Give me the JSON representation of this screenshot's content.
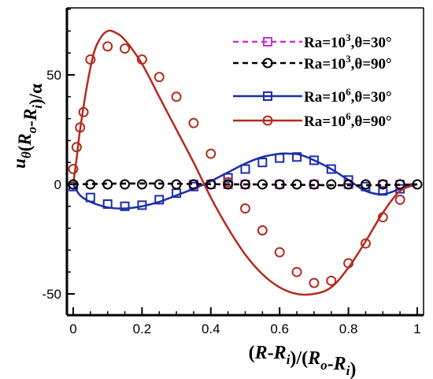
{
  "chart_data": {
    "type": "line",
    "xlabel": "(R-R_i)/(R_o-R_i)",
    "ylabel": "u_θ(R_o-R_i)/α",
    "xlim": [
      0,
      1
    ],
    "ylim": [
      -60,
      80
    ],
    "x_ticks": [
      "0",
      "0.2",
      "0.4",
      "0.6",
      "0.8",
      "1"
    ],
    "y_ticks": [
      "-50",
      "0",
      "50"
    ],
    "legend_position": "top-right",
    "series": [
      {
        "name": "Ra=10^3,θ=30°",
        "color": "#cc33cc",
        "line_style": "dashed",
        "marker": "square",
        "line": {
          "x": [
            0,
            0.1,
            0.2,
            0.3,
            0.4,
            0.5,
            0.6,
            0.7,
            0.8,
            0.9,
            1.0
          ],
          "y": [
            0,
            0.3,
            0.4,
            0.3,
            0.1,
            0,
            -0.1,
            -0.3,
            -0.4,
            -0.3,
            0
          ]
        },
        "markers": {
          "x": [
            0.35,
            0.4,
            0.45,
            0.5,
            0.6,
            0.7,
            0.8,
            0.9,
            0.95
          ],
          "y": [
            0,
            0,
            0,
            0,
            0,
            0,
            0,
            0,
            0
          ]
        }
      },
      {
        "name": "Ra=10^3,θ=90°",
        "color": "#000000",
        "line_style": "dashed",
        "marker": "circle",
        "line": {
          "x": [
            0,
            0.1,
            0.2,
            0.3,
            0.4,
            0.5,
            0.6,
            0.7,
            0.8,
            0.9,
            1.0
          ],
          "y": [
            0,
            0.3,
            0.4,
            0.3,
            0.1,
            0,
            -0.1,
            -0.3,
            -0.4,
            -0.3,
            0
          ]
        },
        "markers": {
          "x": [
            0,
            0.05,
            0.1,
            0.15,
            0.2,
            0.25,
            0.3,
            0.35,
            0.4,
            0.45,
            0.5,
            0.55,
            0.6,
            0.65,
            0.7,
            0.75,
            0.8,
            0.85,
            0.9,
            0.95,
            1.0
          ],
          "y": [
            0,
            0,
            0,
            0,
            0,
            0,
            0,
            0,
            0,
            0,
            0,
            0,
            0,
            0,
            0,
            0,
            0,
            0,
            0,
            0,
            0
          ]
        }
      },
      {
        "name": "Ra=10^6,θ=30°",
        "color": "#1a2ea8",
        "line_style": "solid",
        "marker": "square",
        "line": {
          "x": [
            0,
            0.02,
            0.05,
            0.1,
            0.15,
            0.2,
            0.25,
            0.3,
            0.35,
            0.4,
            0.45,
            0.5,
            0.55,
            0.6,
            0.63,
            0.66,
            0.7,
            0.75,
            0.8,
            0.85,
            0.9,
            0.95,
            0.98,
            1.0
          ],
          "y": [
            0,
            -5,
            -8,
            -10.5,
            -11,
            -10,
            -8,
            -5,
            -2,
            1.5,
            5.5,
            9.5,
            12.5,
            14,
            14,
            13.5,
            11,
            7,
            2,
            -3,
            -4.5,
            -2,
            0,
            0
          ]
        },
        "markers": {
          "x": [
            0,
            0.05,
            0.1,
            0.15,
            0.2,
            0.25,
            0.3,
            0.35,
            0.4,
            0.45,
            0.5,
            0.55,
            0.6,
            0.65,
            0.7,
            0.75,
            0.8,
            0.85,
            0.9,
            0.95
          ],
          "y": [
            -1,
            -6,
            -9,
            -10,
            -9.5,
            -7,
            -4,
            -1,
            0,
            3,
            7,
            10,
            12,
            12.5,
            11,
            7,
            2,
            -1,
            -3,
            -2
          ]
        }
      },
      {
        "name": "Ra=10^6,θ=90°",
        "color": "#b52a1f",
        "line_style": "solid",
        "marker": "circle",
        "line": {
          "x": [
            0,
            0.01,
            0.02,
            0.04,
            0.06,
            0.08,
            0.1,
            0.12,
            0.15,
            0.2,
            0.25,
            0.3,
            0.35,
            0.4,
            0.45,
            0.5,
            0.55,
            0.6,
            0.65,
            0.7,
            0.75,
            0.8,
            0.85,
            0.9,
            0.95,
            1.0
          ],
          "y": [
            0,
            12,
            25,
            45,
            60,
            67,
            70,
            69.5,
            66,
            55,
            40,
            25,
            10,
            -6,
            -20,
            -32,
            -41,
            -47,
            -50,
            -50,
            -47,
            -38,
            -26,
            -13,
            -3,
            0
          ]
        },
        "markers": {
          "x": [
            0,
            0.01,
            0.02,
            0.03,
            0.05,
            0.1,
            0.15,
            0.2,
            0.25,
            0.3,
            0.35,
            0.4,
            0.45,
            0.5,
            0.55,
            0.6,
            0.65,
            0.7,
            0.75,
            0.8,
            0.85,
            0.9,
            0.95
          ],
          "y": [
            7,
            17,
            26,
            33,
            57,
            63,
            62,
            57,
            49,
            40,
            28,
            14,
            1,
            -11,
            -21,
            -31,
            -40,
            -45,
            -44,
            -36,
            -27,
            -15,
            -7
          ]
        }
      }
    ]
  }
}
